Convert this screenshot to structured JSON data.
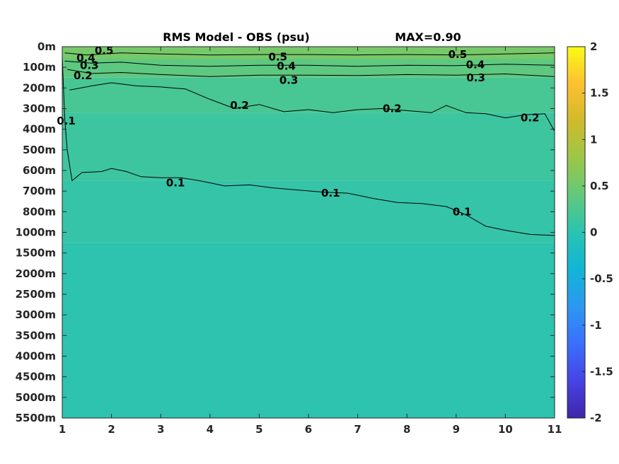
{
  "chart_data": {
    "type": "heatmap",
    "title": "RMS Model - OBS (psu)",
    "subtitle": "MAX=0.90",
    "xlabel": "",
    "ylabel": "",
    "x_ticks": [
      "1",
      "2",
      "3",
      "4",
      "5",
      "6",
      "7",
      "8",
      "9",
      "10",
      "11"
    ],
    "xlim": [
      1,
      11
    ],
    "y_ticks": [
      "0m",
      "100m",
      "200m",
      "300m",
      "400m",
      "500m",
      "600m",
      "700m",
      "800m",
      "1000m",
      "1500m",
      "2000m",
      "2500m",
      "3000m",
      "3500m",
      "4000m",
      "4500m",
      "5000m",
      "5500m"
    ],
    "colorbar": {
      "ticks": [
        "2",
        "1.5",
        "1",
        "0.5",
        "0",
        "-0.5",
        "-1",
        "-1.5",
        "-2"
      ],
      "range": [
        -2,
        2
      ],
      "colormap": "parula",
      "colors": [
        "#3e26a8",
        "#4743e4",
        "#3a6ffd",
        "#2c98f0",
        "#11b5d6",
        "#2ac3b1",
        "#61c87d",
        "#9bc747",
        "#d0ba2b",
        "#fdc030",
        "#f9fb15"
      ]
    },
    "contour_levels": [
      "0.1",
      "0.2",
      "0.3",
      "0.4",
      "0.5"
    ],
    "contour_labels": [
      {
        "text": "0.5",
        "x": 1.85,
        "depth_index": 0.18
      },
      {
        "text": "0.4",
        "x": 1.48,
        "depth_index": 0.55
      },
      {
        "text": "0.3",
        "x": 1.55,
        "depth_index": 0.9
      },
      {
        "text": "0.2",
        "x": 1.42,
        "depth_index": 1.4
      },
      {
        "text": "0.5",
        "x": 5.38,
        "depth_index": 0.5
      },
      {
        "text": "0.4",
        "x": 5.55,
        "depth_index": 0.95
      },
      {
        "text": "0.3",
        "x": 5.6,
        "depth_index": 1.62
      },
      {
        "text": "0.5",
        "x": 9.03,
        "depth_index": 0.38
      },
      {
        "text": "0.4",
        "x": 9.39,
        "depth_index": 0.88
      },
      {
        "text": "0.3",
        "x": 9.4,
        "depth_index": 1.5
      },
      {
        "text": "0.2",
        "x": 4.6,
        "depth_index": 2.85
      },
      {
        "text": "0.2",
        "x": 7.7,
        "depth_index": 3.0
      },
      {
        "text": "0.2",
        "x": 10.5,
        "depth_index": 3.45
      },
      {
        "text": "0.1",
        "x": 1.08,
        "depth_index": 3.6
      },
      {
        "text": "0.1",
        "x": 3.3,
        "depth_index": 6.6
      },
      {
        "text": "0.1",
        "x": 6.45,
        "depth_index": 7.1
      },
      {
        "text": "0.1",
        "x": 9.12,
        "depth_index": 8.0
      }
    ],
    "contours": [
      {
        "level": "0.1",
        "points": [
          [
            1.0,
            0.5
          ],
          [
            1.05,
            3.5
          ],
          [
            1.1,
            5.0
          ],
          [
            1.2,
            6.5
          ],
          [
            1.4,
            6.1
          ],
          [
            1.8,
            6.05
          ],
          [
            2.0,
            5.9
          ],
          [
            2.3,
            6.05
          ],
          [
            2.6,
            6.3
          ],
          [
            3.0,
            6.35
          ],
          [
            3.4,
            6.35
          ],
          [
            3.8,
            6.5
          ],
          [
            4.3,
            6.75
          ],
          [
            4.8,
            6.7
          ],
          [
            5.3,
            6.85
          ],
          [
            5.8,
            6.95
          ],
          [
            6.3,
            7.05
          ],
          [
            6.8,
            7.1
          ],
          [
            7.3,
            7.35
          ],
          [
            7.8,
            7.55
          ],
          [
            8.3,
            7.6
          ],
          [
            8.8,
            7.75
          ],
          [
            9.2,
            8.15
          ],
          [
            9.6,
            8.7
          ],
          [
            10.0,
            8.9
          ],
          [
            10.5,
            9.1
          ],
          [
            11.0,
            9.15
          ]
        ]
      },
      {
        "level": "0.2",
        "points": [
          [
            1.15,
            2.1
          ],
          [
            1.6,
            1.9
          ],
          [
            2.0,
            1.75
          ],
          [
            2.5,
            1.9
          ],
          [
            3.0,
            1.95
          ],
          [
            3.5,
            2.05
          ],
          [
            4.0,
            2.55
          ],
          [
            4.5,
            3.0
          ],
          [
            5.0,
            2.8
          ],
          [
            5.5,
            3.15
          ],
          [
            6.0,
            3.05
          ],
          [
            6.5,
            3.2
          ],
          [
            7.0,
            3.05
          ],
          [
            7.5,
            3.0
          ],
          [
            8.0,
            3.1
          ],
          [
            8.5,
            3.2
          ],
          [
            8.8,
            2.85
          ],
          [
            9.2,
            3.2
          ],
          [
            9.6,
            3.25
          ],
          [
            10.0,
            3.45
          ],
          [
            10.4,
            3.3
          ],
          [
            10.8,
            3.25
          ],
          [
            11.0,
            4.1
          ]
        ]
      },
      {
        "level": "0.3",
        "points": [
          [
            1.1,
            1.1
          ],
          [
            1.6,
            1.3
          ],
          [
            2.2,
            1.25
          ],
          [
            3.0,
            1.35
          ],
          [
            4.0,
            1.45
          ],
          [
            5.0,
            1.38
          ],
          [
            6.0,
            1.38
          ],
          [
            7.0,
            1.4
          ],
          [
            8.0,
            1.35
          ],
          [
            9.0,
            1.38
          ],
          [
            10.0,
            1.32
          ],
          [
            11.0,
            1.45
          ]
        ]
      },
      {
        "level": "0.4",
        "points": [
          [
            1.05,
            0.7
          ],
          [
            1.6,
            0.8
          ],
          [
            2.2,
            0.75
          ],
          [
            3.0,
            0.9
          ],
          [
            4.0,
            0.95
          ],
          [
            5.0,
            0.9
          ],
          [
            6.0,
            0.9
          ],
          [
            7.0,
            0.95
          ],
          [
            8.0,
            0.9
          ],
          [
            9.0,
            0.92
          ],
          [
            10.0,
            0.85
          ],
          [
            11.0,
            0.9
          ]
        ]
      },
      {
        "level": "0.5",
        "points": [
          [
            1.05,
            0.3
          ],
          [
            1.5,
            0.4
          ],
          [
            2.2,
            0.3
          ],
          [
            3.0,
            0.35
          ],
          [
            4.0,
            0.4
          ],
          [
            5.0,
            0.38
          ],
          [
            6.0,
            0.38
          ],
          [
            7.0,
            0.4
          ],
          [
            8.0,
            0.38
          ],
          [
            9.0,
            0.4
          ],
          [
            10.0,
            0.35
          ],
          [
            11.0,
            0.3
          ]
        ]
      }
    ],
    "field_bands": [
      {
        "to_depth_index": 0.6,
        "value": 0.55
      },
      {
        "to_depth_index": 1.5,
        "value": 0.38
      },
      {
        "to_depth_index": 3.2,
        "value": 0.22
      },
      {
        "to_depth_index": 6.5,
        "value": 0.14
      },
      {
        "to_depth_index": 9.5,
        "value": 0.08
      },
      {
        "to_depth_index": 18,
        "value": 0.02
      }
    ]
  }
}
